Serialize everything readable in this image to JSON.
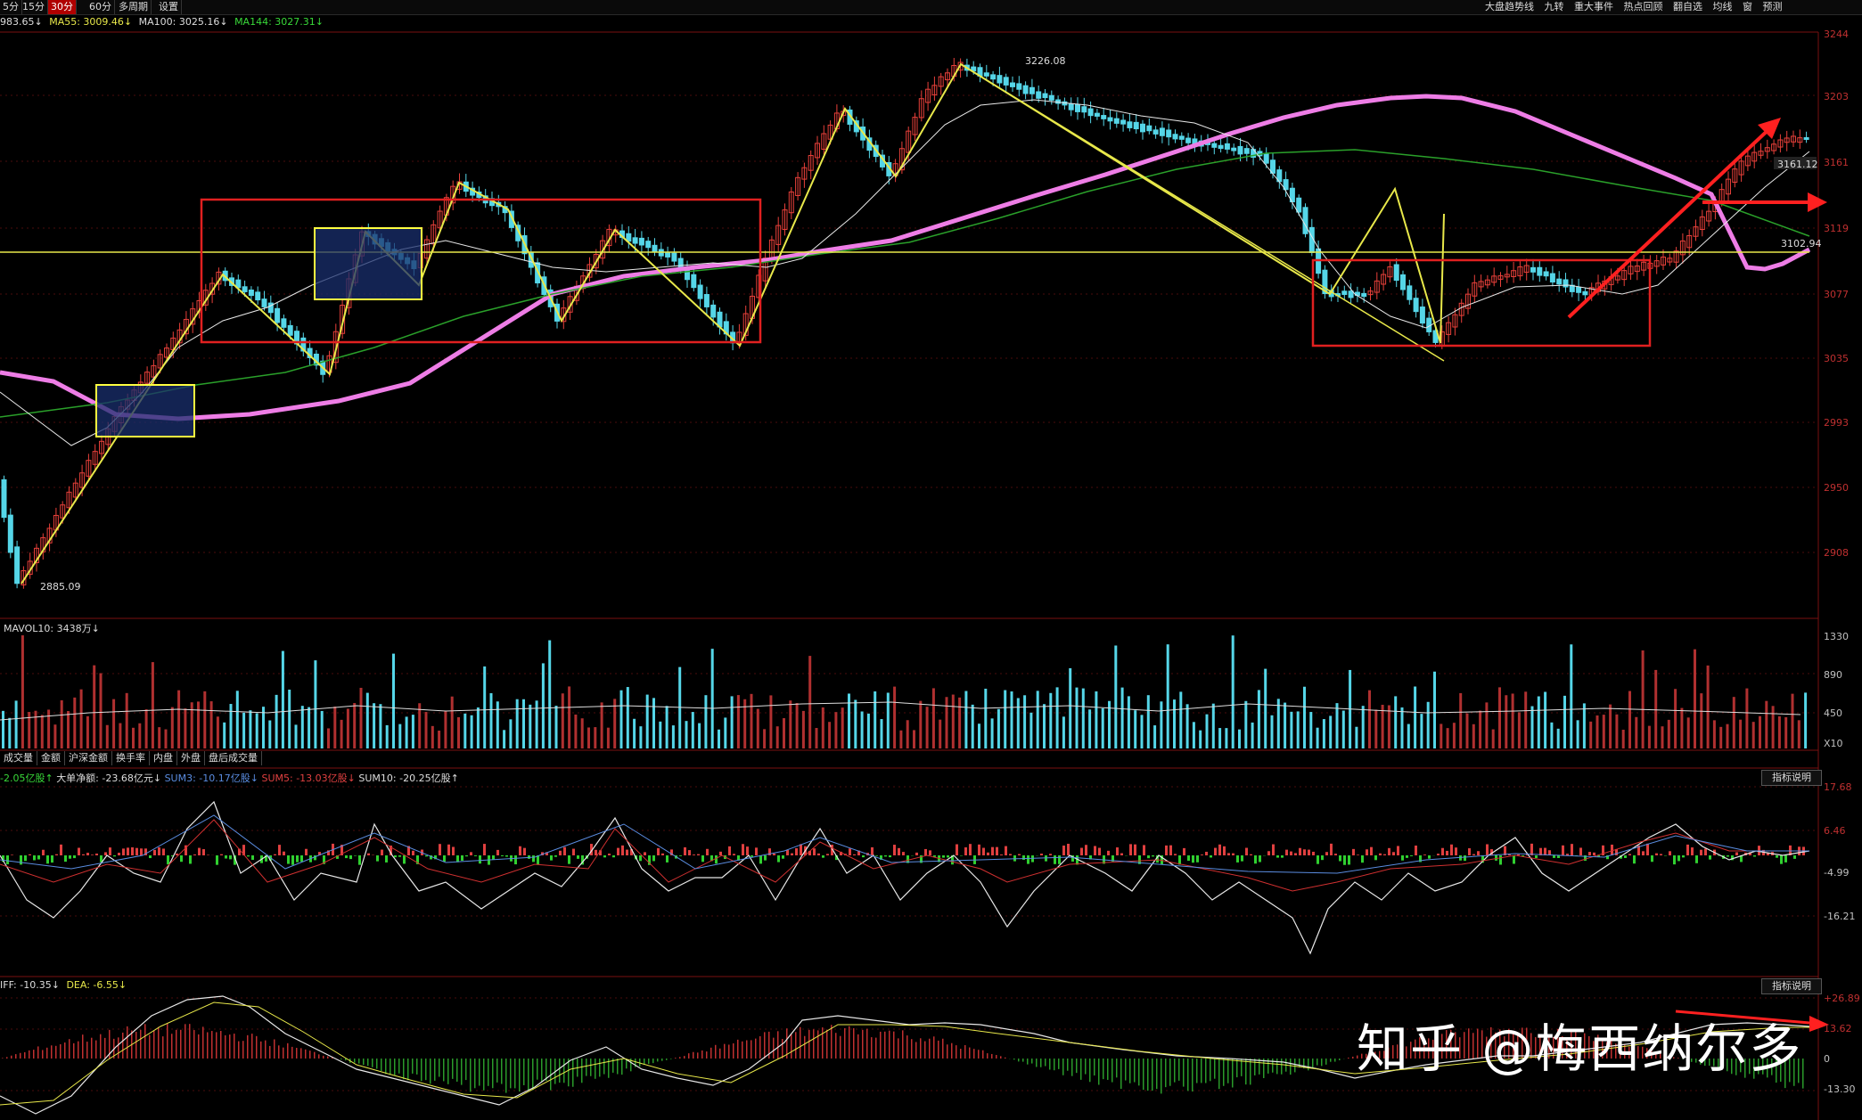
{
  "toolbar": {
    "periods": [
      "5分",
      "15分",
      "30分",
      "60分",
      "多周期",
      "设置"
    ],
    "active_period": "30分",
    "right_items": [
      "大盘趋势线",
      "九转",
      "重大事件",
      "热点回顾",
      "翻自选",
      "均线",
      "窗",
      "预测"
    ]
  },
  "ma_line": {
    "prefix": "983.65↓",
    "ma55": "MA55: 3009.46↓",
    "ma100": "MA100: 3025.16↓",
    "ma144": "MA144: 3027.31↓"
  },
  "price_axis": [
    "3244",
    "3203",
    "3161",
    "3119",
    "3077",
    "3035",
    "2993",
    "2950",
    "2908"
  ],
  "price_annotations": {
    "high": "3226.08",
    "low": "2885.09",
    "current": "3161.12",
    "line": "3102.94"
  },
  "volume": {
    "label": "MAVOL10: 3438万↓",
    "axis": [
      "1330",
      "890",
      "450",
      "X10"
    ]
  },
  "tabs": [
    "成交量",
    "金额",
    "沪深金额",
    "换手率",
    "内盘",
    "外盘",
    "盘后成交量"
  ],
  "fund_flow": {
    "label_a": "-2.05亿股↑",
    "label_b": "大单净额: -23.68亿元↓",
    "sum3": "SUM3: -10.17亿股↓",
    "sum5": "SUM5: -13.03亿股↓",
    "sum10": "SUM10: -20.25亿股↑",
    "explain": "指标说明",
    "axis": [
      "17.68",
      "6.46",
      "-4.99",
      "-16.21"
    ]
  },
  "macd": {
    "diff": "IFF: -10.35↓",
    "dea": "DEA: -6.55↓",
    "explain": "指标说明",
    "axis": [
      "+26.89",
      "13.62",
      "0",
      "-13.30"
    ]
  },
  "watermark": "知乎 @梅西纳尔多",
  "colors": {
    "up": "#e8403a",
    "down": "#55d6e8",
    "ma_pink": "#ee7de6",
    "ma_yellow": "#e8e84a",
    "frame_red": "#e02020",
    "box_yellow": "#ffff40"
  }
}
